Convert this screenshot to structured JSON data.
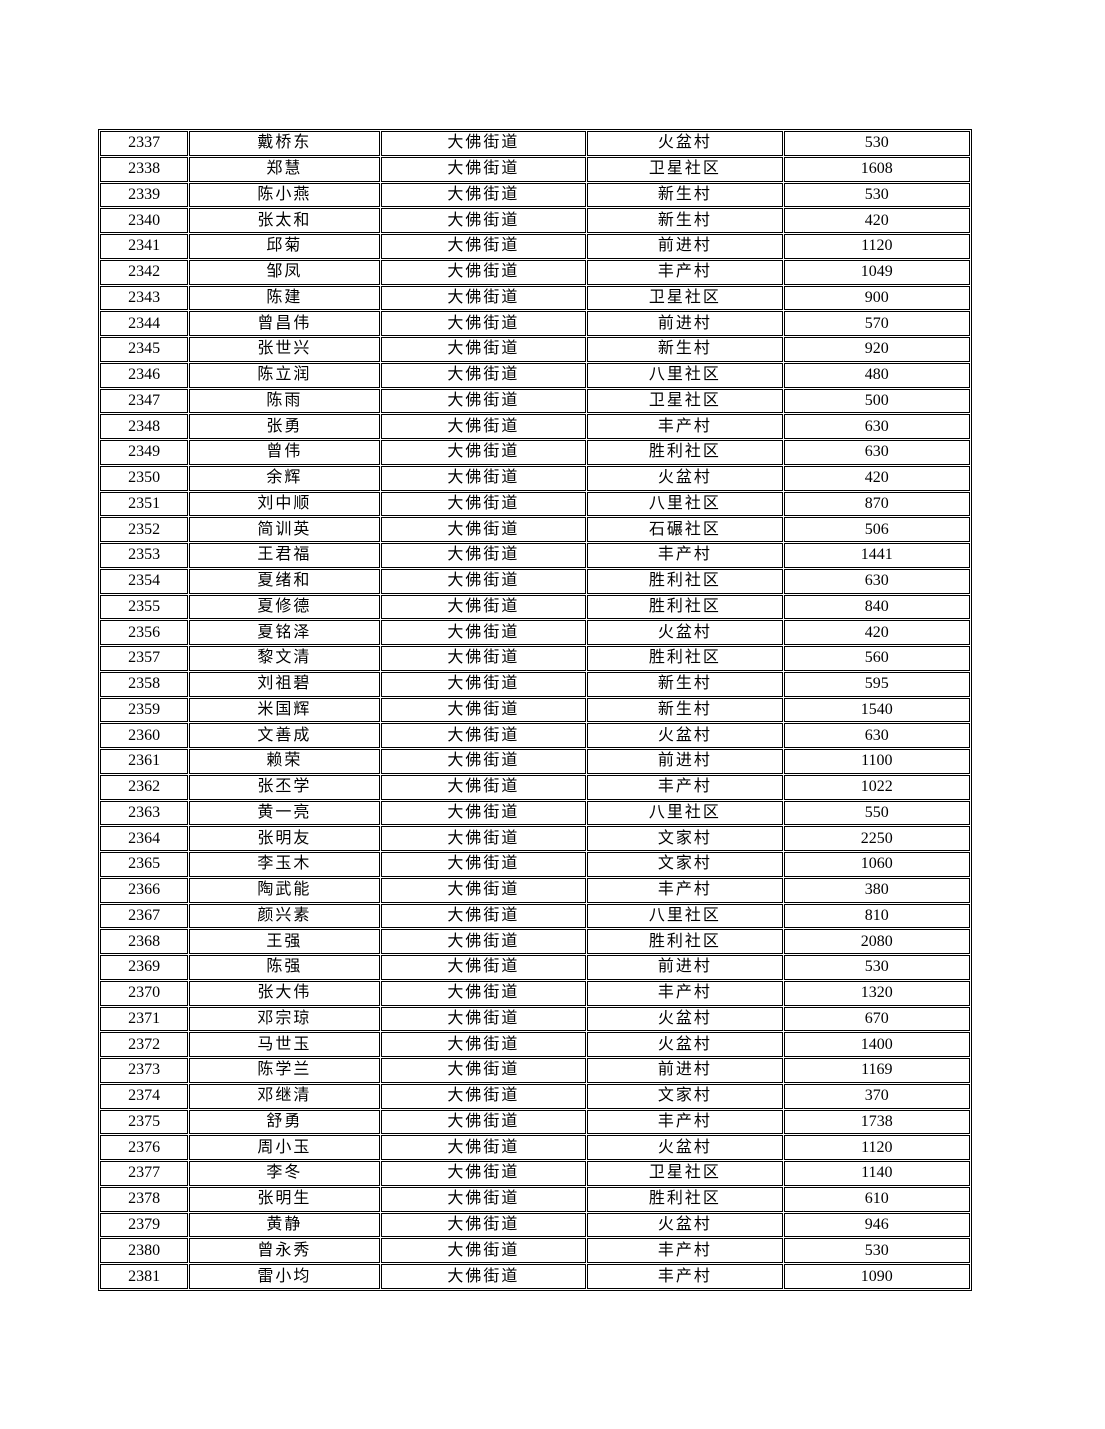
{
  "page": {
    "background_color": "#ffffff",
    "text_color": "#000000",
    "border_color": "#000000"
  },
  "table": {
    "fields": [
      "id",
      "name",
      "street",
      "village",
      "amount"
    ],
    "rows": [
      {
        "id": "2337",
        "name": "戴桥东",
        "street": "大佛街道",
        "village": "火盆村",
        "amount": "530"
      },
      {
        "id": "2338",
        "name": "郑慧",
        "street": "大佛街道",
        "village": "卫星社区",
        "amount": "1608"
      },
      {
        "id": "2339",
        "name": "陈小燕",
        "street": "大佛街道",
        "village": "新生村",
        "amount": "530"
      },
      {
        "id": "2340",
        "name": "张太和",
        "street": "大佛街道",
        "village": "新生村",
        "amount": "420"
      },
      {
        "id": "2341",
        "name": "邱菊",
        "street": "大佛街道",
        "village": "前进村",
        "amount": "1120"
      },
      {
        "id": "2342",
        "name": "邹凤",
        "street": "大佛街道",
        "village": "丰产村",
        "amount": "1049"
      },
      {
        "id": "2343",
        "name": "陈建",
        "street": "大佛街道",
        "village": "卫星社区",
        "amount": "900"
      },
      {
        "id": "2344",
        "name": "曾昌伟",
        "street": "大佛街道",
        "village": "前进村",
        "amount": "570"
      },
      {
        "id": "2345",
        "name": "张世兴",
        "street": "大佛街道",
        "village": "新生村",
        "amount": "920"
      },
      {
        "id": "2346",
        "name": "陈立润",
        "street": "大佛街道",
        "village": "八里社区",
        "amount": "480"
      },
      {
        "id": "2347",
        "name": "陈雨",
        "street": "大佛街道",
        "village": "卫星社区",
        "amount": "500"
      },
      {
        "id": "2348",
        "name": "张勇",
        "street": "大佛街道",
        "village": "丰产村",
        "amount": "630"
      },
      {
        "id": "2349",
        "name": "曾伟",
        "street": "大佛街道",
        "village": "胜利社区",
        "amount": "630"
      },
      {
        "id": "2350",
        "name": "余辉",
        "street": "大佛街道",
        "village": "火盆村",
        "amount": "420"
      },
      {
        "id": "2351",
        "name": "刘中顺",
        "street": "大佛街道",
        "village": "八里社区",
        "amount": "870"
      },
      {
        "id": "2352",
        "name": "简训英",
        "street": "大佛街道",
        "village": "石碾社区",
        "amount": "506"
      },
      {
        "id": "2353",
        "name": "王君福",
        "street": "大佛街道",
        "village": "丰产村",
        "amount": "1441"
      },
      {
        "id": "2354",
        "name": "夏绪和",
        "street": "大佛街道",
        "village": "胜利社区",
        "amount": "630"
      },
      {
        "id": "2355",
        "name": "夏修德",
        "street": "大佛街道",
        "village": "胜利社区",
        "amount": "840"
      },
      {
        "id": "2356",
        "name": "夏铭泽",
        "street": "大佛街道",
        "village": "火盆村",
        "amount": "420"
      },
      {
        "id": "2357",
        "name": "黎文清",
        "street": "大佛街道",
        "village": "胜利社区",
        "amount": "560"
      },
      {
        "id": "2358",
        "name": "刘祖碧",
        "street": "大佛街道",
        "village": "新生村",
        "amount": "595"
      },
      {
        "id": "2359",
        "name": "米国辉",
        "street": "大佛街道",
        "village": "新生村",
        "amount": "1540"
      },
      {
        "id": "2360",
        "name": "文善成",
        "street": "大佛街道",
        "village": "火盆村",
        "amount": "630"
      },
      {
        "id": "2361",
        "name": "赖荣",
        "street": "大佛街道",
        "village": "前进村",
        "amount": "1100"
      },
      {
        "id": "2362",
        "name": "张丕学",
        "street": "大佛街道",
        "village": "丰产村",
        "amount": "1022"
      },
      {
        "id": "2363",
        "name": "黄一亮",
        "street": "大佛街道",
        "village": "八里社区",
        "amount": "550"
      },
      {
        "id": "2364",
        "name": "张明友",
        "street": "大佛街道",
        "village": "文家村",
        "amount": "2250"
      },
      {
        "id": "2365",
        "name": "李玉木",
        "street": "大佛街道",
        "village": "文家村",
        "amount": "1060"
      },
      {
        "id": "2366",
        "name": "陶武能",
        "street": "大佛街道",
        "village": "丰产村",
        "amount": "380"
      },
      {
        "id": "2367",
        "name": "颜兴素",
        "street": "大佛街道",
        "village": "八里社区",
        "amount": "810"
      },
      {
        "id": "2368",
        "name": "王强",
        "street": "大佛街道",
        "village": "胜利社区",
        "amount": "2080"
      },
      {
        "id": "2369",
        "name": "陈强",
        "street": "大佛街道",
        "village": "前进村",
        "amount": "530"
      },
      {
        "id": "2370",
        "name": "张大伟",
        "street": "大佛街道",
        "village": "丰产村",
        "amount": "1320"
      },
      {
        "id": "2371",
        "name": "邓宗琼",
        "street": "大佛街道",
        "village": "火盆村",
        "amount": "670"
      },
      {
        "id": "2372",
        "name": "马世玉",
        "street": "大佛街道",
        "village": "火盆村",
        "amount": "1400"
      },
      {
        "id": "2373",
        "name": "陈学兰",
        "street": "大佛街道",
        "village": "前进村",
        "amount": "1169"
      },
      {
        "id": "2374",
        "name": "邓继清",
        "street": "大佛街道",
        "village": "文家村",
        "amount": "370"
      },
      {
        "id": "2375",
        "name": "舒勇",
        "street": "大佛街道",
        "village": "丰产村",
        "amount": "1738"
      },
      {
        "id": "2376",
        "name": "周小玉",
        "street": "大佛街道",
        "village": "火盆村",
        "amount": "1120"
      },
      {
        "id": "2377",
        "name": "李冬",
        "street": "大佛街道",
        "village": "卫星社区",
        "amount": "1140"
      },
      {
        "id": "2378",
        "name": "张明生",
        "street": "大佛街道",
        "village": "胜利社区",
        "amount": "610"
      },
      {
        "id": "2379",
        "name": "黄静",
        "street": "大佛街道",
        "village": "火盆村",
        "amount": "946"
      },
      {
        "id": "2380",
        "name": "曾永秀",
        "street": "大佛街道",
        "village": "丰产村",
        "amount": "530"
      },
      {
        "id": "2381",
        "name": "雷小均",
        "street": "大佛街道",
        "village": "丰产村",
        "amount": "1090"
      }
    ]
  }
}
